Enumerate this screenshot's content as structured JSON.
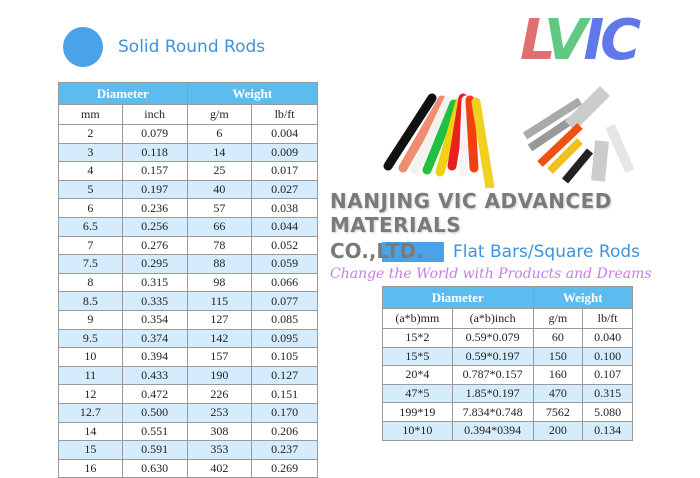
{
  "round": {
    "title": "Solid Round Rods",
    "headers": [
      "Diameter",
      "Weight"
    ],
    "subheaders": [
      "mm",
      "inch",
      "g/m",
      "lb/ft"
    ],
    "rows": [
      [
        "2",
        "0.079",
        "6",
        "0.004"
      ],
      [
        "3",
        "0.118",
        "14",
        "0.009"
      ],
      [
        "4",
        "0.157",
        "25",
        "0.017"
      ],
      [
        "5",
        "0.197",
        "40",
        "0.027"
      ],
      [
        "6",
        "0.236",
        "57",
        "0.038"
      ],
      [
        "6.5",
        "0.256",
        "66",
        "0.044"
      ],
      [
        "7",
        "0.276",
        "78",
        "0.052"
      ],
      [
        "7.5",
        "0.295",
        "88",
        "0.059"
      ],
      [
        "8",
        "0.315",
        "98",
        "0.066"
      ],
      [
        "8.5",
        "0.335",
        "115",
        "0.077"
      ],
      [
        "9",
        "0.354",
        "127",
        "0.085"
      ],
      [
        "9.5",
        "0.374",
        "142",
        "0.095"
      ],
      [
        "10",
        "0.394",
        "157",
        "0.105"
      ],
      [
        "11",
        "0.433",
        "190",
        "0.127"
      ],
      [
        "12",
        "0.472",
        "226",
        "0.151"
      ],
      [
        "12.7",
        "0.500",
        "253",
        "0.170"
      ],
      [
        "14",
        "0.551",
        "308",
        "0.206"
      ],
      [
        "15",
        "0.591",
        "353",
        "0.237"
      ],
      [
        "16",
        "0.630",
        "402",
        "0.269"
      ]
    ]
  },
  "flat": {
    "title": "Flat Bars/Square Rods",
    "headers": [
      "Diameter",
      "Weight"
    ],
    "subheaders": [
      "(a*b)mm",
      "(a*b)inch",
      "g/m",
      "lb/ft"
    ],
    "rows": [
      [
        "15*2",
        "0.59*0.079",
        "60",
        "0.040"
      ],
      [
        "15*5",
        "0.59*0.197",
        "150",
        "0.100"
      ],
      [
        "20*4",
        "0.787*0.157",
        "160",
        "0.107"
      ],
      [
        "47*5",
        "1.85*0.197",
        "470",
        "0.315"
      ],
      [
        "199*19",
        "7.834*0.748",
        "7562",
        "5.080"
      ],
      [
        "10*10",
        "0.394*0394",
        "200",
        "0.134"
      ]
    ]
  },
  "watermark": {
    "line1": "NANJING VIC ADVANCED MATERIALS",
    "line2": "CO.,LTD.",
    "slogan": "Change the World with Products and Dreams",
    "logo": "LVIC"
  },
  "colors": {
    "accent": "#4aa3e8",
    "header": "#5cbcf0",
    "stripe": "#d4ecfb"
  }
}
